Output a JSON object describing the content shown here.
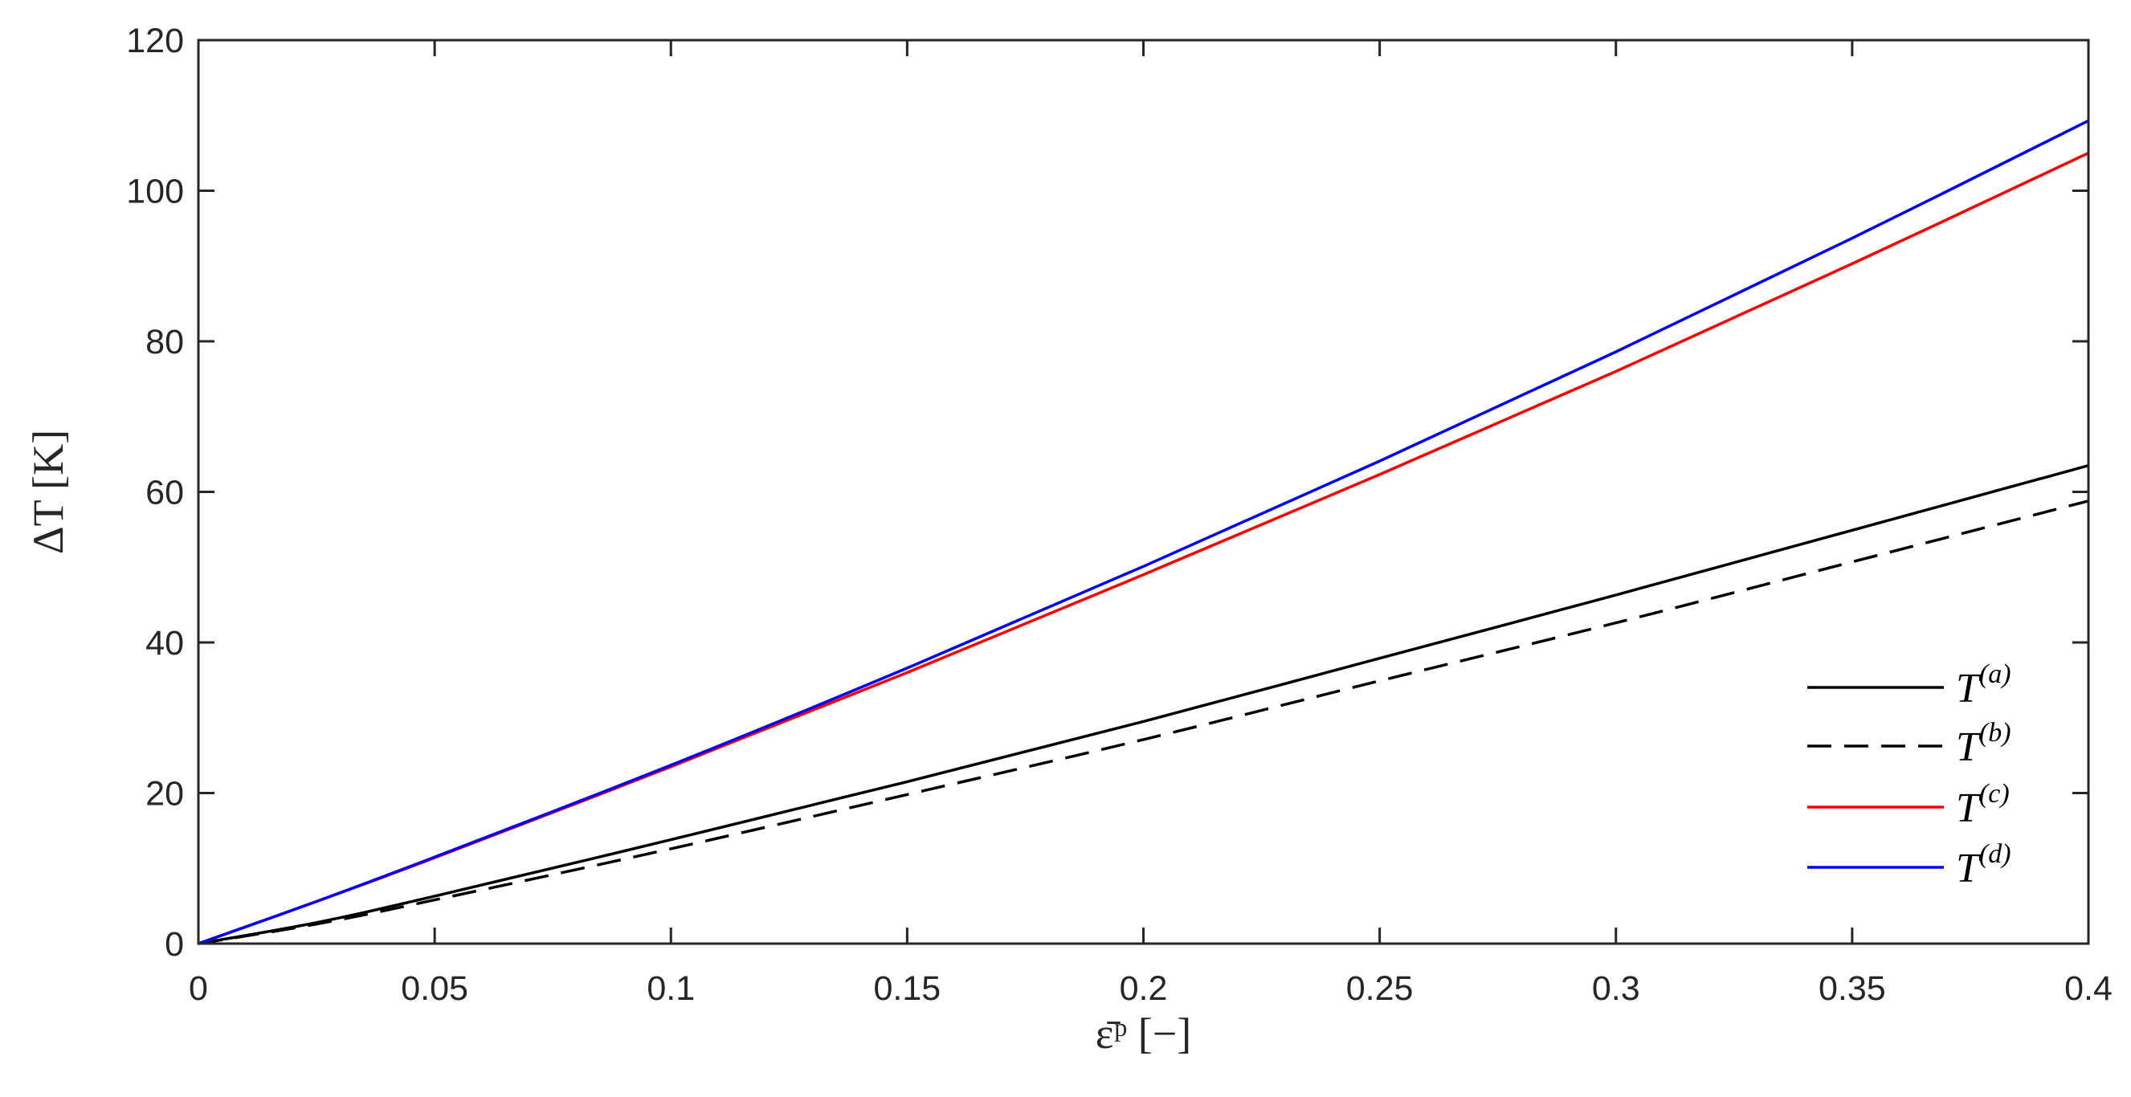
{
  "chart_data": {
    "type": "line",
    "xlabel": "ε̄ᵖ [−]",
    "ylabel": "ΔT [K]",
    "xlim": [
      0,
      0.4
    ],
    "ylim": [
      0,
      120
    ],
    "xticks": [
      "0",
      "0.05",
      "0.1",
      "0.15",
      "0.2",
      "0.25",
      "0.3",
      "0.35",
      "0.4"
    ],
    "yticks": [
      "0",
      "20",
      "40",
      "60",
      "80",
      "100",
      "120"
    ],
    "grid": false,
    "legend_position": "bottom-right",
    "x": [
      0,
      0.025,
      0.05,
      0.1,
      0.15,
      0.2,
      0.25,
      0.3,
      0.35,
      0.4
    ],
    "series": [
      {
        "name": "T(a)",
        "color": "#000000",
        "dash": "solid",
        "values": [
          0,
          2.8,
          6.3,
          13.8,
          21.5,
          29.5,
          37.9,
          46.3,
          54.9,
          63.5
        ]
      },
      {
        "name": "T(b)",
        "color": "#000000",
        "dash": "dashed",
        "values": [
          0,
          2.6,
          5.8,
          12.6,
          19.8,
          27.1,
          34.9,
          42.6,
          50.7,
          58.8
        ]
      },
      {
        "name": "T(c)",
        "color": "#ff0000",
        "dash": "solid",
        "values": [
          0,
          5.6,
          11.4,
          23.5,
          36.0,
          49.0,
          62.3,
          76.0,
          90.3,
          105.0
        ]
      },
      {
        "name": "T(d)",
        "color": "#0000ff",
        "dash": "solid",
        "values": [
          0,
          5.6,
          11.5,
          23.7,
          36.6,
          50.1,
          64.1,
          78.6,
          93.7,
          109.3
        ]
      }
    ]
  }
}
